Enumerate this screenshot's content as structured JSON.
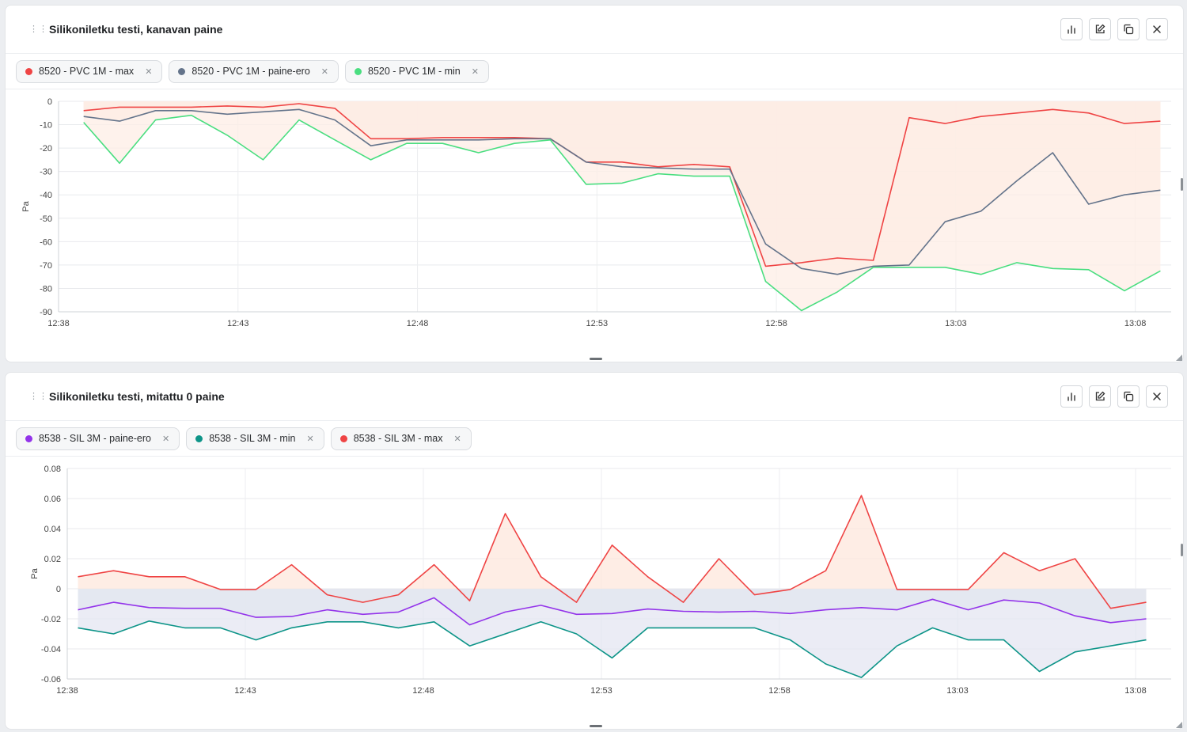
{
  "panels": [
    {
      "title": "Silikoniletku testi, kanavan paine",
      "legend": [
        {
          "label": "8520 - PVC 1M - max",
          "color": "#ef4444"
        },
        {
          "label": "8520 - PVC 1M - paine-ero",
          "color": "#64748b"
        },
        {
          "label": "8520 - PVC 1M - min",
          "color": "#4ade80"
        }
      ]
    },
    {
      "title": "Silikoniletku testi, mitattu 0 paine",
      "legend": [
        {
          "label": "8538 - SIL 3M - paine-ero",
          "color": "#9333ea"
        },
        {
          "label": "8538 - SIL 3M - min",
          "color": "#0d9488"
        },
        {
          "label": "8538 - SIL 3M - max",
          "color": "#ef4444"
        }
      ]
    }
  ],
  "icons": [
    "bar-chart-icon",
    "edit-icon",
    "copy-icon",
    "close-icon",
    "drag-handle-icon"
  ],
  "chart_data": [
    {
      "type": "area",
      "ylabel": "Pa",
      "ylim": [
        -90,
        0
      ],
      "yticks": [
        0,
        -10,
        -20,
        -30,
        -40,
        -50,
        -60,
        -70,
        -80,
        -90
      ],
      "xlim": [
        0,
        31
      ],
      "xticks": [
        0,
        5,
        10,
        15,
        20,
        25,
        30
      ],
      "xtick_labels": [
        "12:38",
        "12:43",
        "12:48",
        "12:53",
        "12:58",
        "13:03",
        "13:08"
      ],
      "x": [
        0.7,
        1.7,
        2.7,
        3.7,
        4.7,
        5.7,
        6.7,
        7.7,
        8.7,
        9.7,
        10.7,
        11.7,
        12.7,
        13.7,
        14.7,
        15.7,
        16.7,
        17.7,
        18.7,
        19.7,
        20.7,
        21.7,
        22.7,
        23.7,
        24.7,
        25.7,
        26.7,
        27.7,
        28.7,
        29.7,
        30.7
      ],
      "series": [
        {
          "name": "8520 - PVC 1M - max",
          "color": "#ef4444",
          "fill": "#f1e4ea",
          "values": [
            -4,
            -2.5,
            -2.5,
            -2.5,
            -2,
            -2.5,
            -1,
            -3,
            -16,
            -16,
            -15.5,
            -15.5,
            -15.5,
            -16,
            -26,
            -26,
            -28,
            -27,
            -28,
            -70.5,
            -69,
            -67,
            -68,
            -7,
            -9.5,
            -6.5,
            -5,
            -3.5,
            -5,
            -9.5,
            -8.5
          ]
        },
        {
          "name": "8520 - PVC 1M - paine-ero",
          "color": "#64748b",
          "fill": "#fce8de",
          "values": [
            -6.5,
            -8.5,
            -4,
            -4,
            -5.5,
            -4.5,
            -3.5,
            -8,
            -19,
            -16.5,
            -16.5,
            -16.5,
            -16,
            -16,
            -26,
            -28,
            -28.5,
            -29,
            -29,
            -61,
            -71.5,
            -74,
            -70.5,
            -70,
            -51.5,
            -47,
            -34,
            -22,
            -44,
            -40,
            -38
          ]
        },
        {
          "name": "8520 - PVC 1M - min",
          "color": "#4ade80",
          "fill": "#fdeee6",
          "values": [
            -9,
            -26.5,
            -8,
            -6,
            -14.5,
            -25,
            -8,
            -16.5,
            -25,
            -18,
            -18,
            -22,
            -18,
            -16.5,
            -35.5,
            -35,
            -31,
            -32,
            -32,
            -77,
            -89.5,
            -81.5,
            -71,
            -71,
            -71,
            -74,
            -69,
            -71.5,
            -72,
            -81,
            -72.5
          ]
        }
      ]
    },
    {
      "type": "area",
      "ylabel": "Pa",
      "ylim": [
        -0.06,
        0.08
      ],
      "yticks": [
        0.08,
        0.06,
        0.04,
        0.02,
        0,
        -0.02,
        -0.04,
        -0.06
      ],
      "ytick_labels": [
        "0.08",
        "0.06",
        "0.04",
        "0.02",
        "0",
        "-0.02",
        "-0.04",
        "-0.06"
      ],
      "xlim": [
        0,
        31
      ],
      "xticks": [
        0,
        5,
        10,
        15,
        20,
        25,
        30
      ],
      "xtick_labels": [
        "12:38",
        "12:43",
        "12:48",
        "12:53",
        "12:58",
        "13:03",
        "13:08"
      ],
      "x": [
        0.3,
        1.3,
        2.3,
        3.3,
        4.3,
        5.3,
        6.3,
        7.3,
        8.3,
        9.3,
        10.3,
        11.3,
        12.3,
        13.3,
        14.3,
        15.3,
        16.3,
        17.3,
        18.3,
        19.3,
        20.3,
        21.3,
        22.3,
        23.3,
        24.3,
        25.3,
        26.3,
        27.3,
        28.3,
        29.3,
        30.3
      ],
      "series": [
        {
          "name": "8538 - SIL 3M - max",
          "color": "#ef4444",
          "fill": "#fde7dc",
          "values": [
            0.008,
            0.012,
            0.008,
            0.008,
            -0.0005,
            -0.0005,
            0.016,
            -0.004,
            -0.009,
            -0.004,
            0.016,
            -0.008,
            0.05,
            0.008,
            -0.009,
            0.029,
            0.008,
            -0.009,
            0.02,
            -0.004,
            -0.0005,
            0.012,
            0.062,
            -0.0005,
            -0.0005,
            -0.0005,
            0.024,
            0.012,
            0.02,
            -0.013,
            -0.009
          ]
        },
        {
          "name": "8538 - SIL 3M - paine-ero",
          "color": "#9333ea",
          "fill": "#d9e8e8",
          "values": [
            -0.014,
            -0.009,
            -0.0125,
            -0.013,
            -0.013,
            -0.019,
            -0.0185,
            -0.014,
            -0.017,
            -0.0155,
            -0.006,
            -0.024,
            -0.0155,
            -0.011,
            -0.017,
            -0.0165,
            -0.0135,
            -0.015,
            -0.0155,
            -0.015,
            -0.0165,
            -0.014,
            -0.0125,
            -0.014,
            -0.007,
            -0.014,
            -0.0075,
            -0.0095,
            -0.018,
            -0.0225,
            -0.02
          ]
        },
        {
          "name": "8538 - SIL 3M - min",
          "color": "#0d9488",
          "fill": "#e4e5f2",
          "values": [
            -0.026,
            -0.03,
            -0.0215,
            -0.026,
            -0.026,
            -0.034,
            -0.026,
            -0.022,
            -0.022,
            -0.026,
            -0.022,
            -0.038,
            -0.03,
            -0.022,
            -0.03,
            -0.046,
            -0.026,
            -0.026,
            -0.026,
            -0.026,
            -0.034,
            -0.05,
            -0.059,
            -0.038,
            -0.026,
            -0.034,
            -0.034,
            -0.055,
            -0.042,
            -0.038,
            -0.034
          ]
        }
      ]
    }
  ]
}
